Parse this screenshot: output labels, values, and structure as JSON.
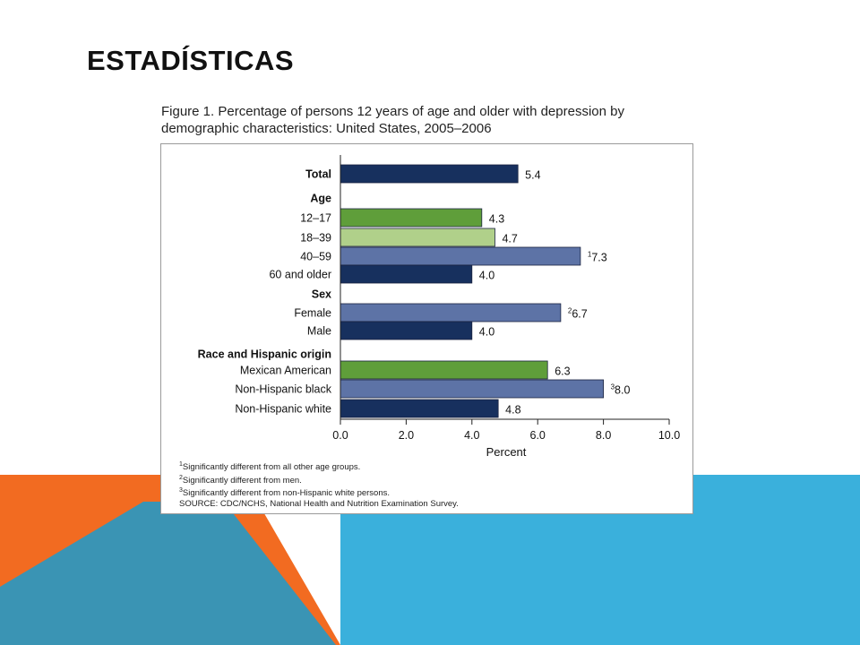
{
  "slide": {
    "title": "ESTADÍSTICAS",
    "colors": {
      "orange": "#f26b21",
      "blue": "#3ab0dc",
      "teal": "#3a94b4"
    }
  },
  "figure": {
    "title_line1": "Figure 1. Percentage of persons 12 years of age and older with depression by",
    "title_line2": "demographic characteristics: United States, 2005–2006"
  },
  "chart_data": {
    "type": "bar",
    "orientation": "horizontal",
    "xlabel": "Percent",
    "xlim": [
      0,
      10
    ],
    "xticks": [
      "0.0",
      "2.0",
      "4.0",
      "6.0",
      "8.0",
      "10.0"
    ],
    "rows": [
      {
        "label": "Total",
        "header": true,
        "value": 5.4,
        "display": "5.4",
        "sup": "",
        "color": "#17305e"
      },
      {
        "label": "Age",
        "header": true,
        "value": null
      },
      {
        "label": "12–17",
        "value": 4.3,
        "display": "4.3",
        "sup": "",
        "color": "#5f9e3a"
      },
      {
        "label": "18–39",
        "value": 4.7,
        "display": "4.7",
        "sup": "",
        "color": "#b0d08a"
      },
      {
        "label": "40–59",
        "value": 7.3,
        "display": "7.3",
        "sup": "1",
        "color": "#5d73a6"
      },
      {
        "label": "60 and older",
        "value": 4.0,
        "display": "4.0",
        "sup": "",
        "color": "#17305e"
      },
      {
        "label": "Sex",
        "header": true,
        "value": null
      },
      {
        "label": "Female",
        "value": 6.7,
        "display": "6.7",
        "sup": "2",
        "color": "#5d73a6"
      },
      {
        "label": "Male",
        "value": 4.0,
        "display": "4.0",
        "sup": "",
        "color": "#17305e"
      },
      {
        "label": "Race and Hispanic origin",
        "header": true,
        "value": null
      },
      {
        "label": "Mexican American",
        "value": 6.3,
        "display": "6.3",
        "sup": "",
        "color": "#5f9e3a"
      },
      {
        "label": "Non-Hispanic black",
        "value": 8.0,
        "display": "8.0",
        "sup": "3",
        "color": "#5d73a6"
      },
      {
        "label": "Non-Hispanic white",
        "value": 4.8,
        "display": "4.8",
        "sup": "",
        "color": "#17305e"
      }
    ]
  },
  "footnotes": {
    "n1_sup": "1",
    "n1": "Significantly different from all other age groups.",
    "n2_sup": "2",
    "n2": "Significantly different from men.",
    "n3_sup": "3",
    "n3": "Significantly different from non-Hispanic white persons.",
    "source": "SOURCE: CDC/NCHS, National Health and Nutrition Examination Survey."
  }
}
